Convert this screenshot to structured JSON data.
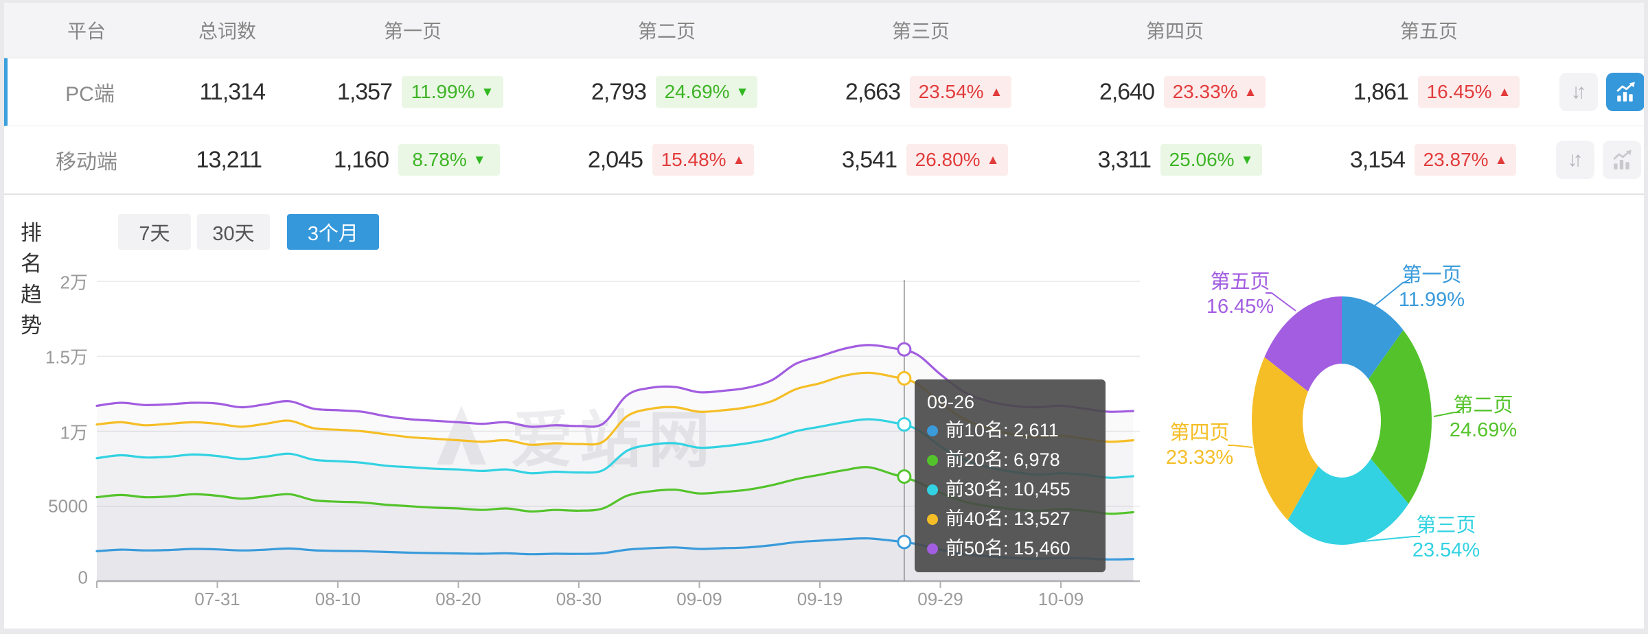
{
  "page": {
    "frame_color": "#e9e9eb",
    "card_color": "#ffffff"
  },
  "table": {
    "columns": [
      "平台",
      "总词数",
      "第一页",
      "第二页",
      "第三页",
      "第四页",
      "第五页"
    ],
    "rows": [
      {
        "platform": "PC端",
        "total": "11,314",
        "selected": true,
        "chart_active": true,
        "pages": [
          {
            "count": "1,357",
            "pct": "11.99%",
            "dir": "down",
            "tone": "green"
          },
          {
            "count": "2,793",
            "pct": "24.69%",
            "dir": "down",
            "tone": "green"
          },
          {
            "count": "2,663",
            "pct": "23.54%",
            "dir": "up",
            "tone": "red"
          },
          {
            "count": "2,640",
            "pct": "23.33%",
            "dir": "up",
            "tone": "red"
          },
          {
            "count": "1,861",
            "pct": "16.45%",
            "dir": "up",
            "tone": "red"
          }
        ]
      },
      {
        "platform": "移动端",
        "total": "13,211",
        "selected": false,
        "chart_active": false,
        "pages": [
          {
            "count": "1,160",
            "pct": "8.78%",
            "dir": "down",
            "tone": "green"
          },
          {
            "count": "2,045",
            "pct": "15.48%",
            "dir": "up",
            "tone": "red"
          },
          {
            "count": "3,541",
            "pct": "26.80%",
            "dir": "up",
            "tone": "red"
          },
          {
            "count": "3,311",
            "pct": "25.06%",
            "dir": "down",
            "tone": "green"
          },
          {
            "count": "3,154",
            "pct": "23.87%",
            "dir": "up",
            "tone": "red"
          }
        ]
      }
    ]
  },
  "trend": {
    "title": "排名趋势",
    "tabs": [
      {
        "label": "7天",
        "active": false
      },
      {
        "label": "30天",
        "active": false
      },
      {
        "label": "3个月",
        "active": true
      }
    ]
  },
  "watermark": "爱站网",
  "tooltip": {
    "title": "09-26",
    "rows": [
      {
        "label": "前10名",
        "value": "2,611",
        "color": "#3a9bdb"
      },
      {
        "label": "前20名",
        "value": "6,978",
        "color": "#54c32b"
      },
      {
        "label": "前30名",
        "value": "10,455",
        "color": "#32d2e2"
      },
      {
        "label": "前40名",
        "value": "13,527",
        "color": "#f5be26"
      },
      {
        "label": "前50名",
        "value": "15,460",
        "color": "#a25de0"
      }
    ]
  },
  "chart_data": [
    {
      "type": "line",
      "title": "排名趋势",
      "x_ticks": [
        "07-31",
        "08-10",
        "08-20",
        "08-30",
        "09-09",
        "09-19",
        "09-29",
        "10-09"
      ],
      "y_ticks": [
        "2万",
        "1.5万",
        "1万",
        "5000",
        "0"
      ],
      "ylim": [
        0,
        20000
      ],
      "grid": true,
      "legend_position": "none",
      "point_step_days": 2,
      "first_tick_day": 10,
      "tick_interval_days": 10,
      "crosshair_label": "09-26",
      "crosshair_day": 67,
      "crosshair_values": [
        2611,
        6978,
        10455,
        13527,
        15460
      ],
      "series": [
        {
          "name": "前10名",
          "color": "#3a9bdb",
          "values": [
            2000,
            2100,
            2050,
            2080,
            2150,
            2120,
            2050,
            2100,
            2180,
            2060,
            2020,
            2000,
            1950,
            1900,
            1870,
            1850,
            1830,
            1860,
            1800,
            1830,
            1820,
            1870,
            2100,
            2200,
            2250,
            2150,
            2200,
            2250,
            2400,
            2600,
            2700,
            2800,
            2850,
            2700,
            2480,
            2100,
            1800,
            1650,
            1550,
            1500,
            1550,
            1520,
            1450,
            1480
          ]
        },
        {
          "name": "前20名",
          "color": "#54c32b",
          "values": [
            5600,
            5750,
            5600,
            5650,
            5800,
            5700,
            5500,
            5650,
            5800,
            5400,
            5300,
            5250,
            5100,
            5000,
            4900,
            4850,
            4750,
            4850,
            4650,
            4750,
            4700,
            4850,
            5700,
            6000,
            6100,
            5850,
            5950,
            6100,
            6400,
            6800,
            7100,
            7400,
            7600,
            7150,
            6650,
            5900,
            5300,
            5000,
            4800,
            4700,
            4800,
            4700,
            4500,
            4600
          ]
        },
        {
          "name": "前30名",
          "color": "#32d2e2",
          "values": [
            8200,
            8400,
            8250,
            8300,
            8450,
            8350,
            8150,
            8300,
            8500,
            8100,
            8000,
            7900,
            7700,
            7600,
            7500,
            7450,
            7350,
            7450,
            7200,
            7300,
            7250,
            7400,
            8700,
            9100,
            9200,
            8900,
            9000,
            9200,
            9500,
            10000,
            10300,
            10600,
            10800,
            10600,
            10150,
            9000,
            8100,
            7600,
            7300,
            7100,
            7200,
            7100,
            6900,
            7000
          ]
        },
        {
          "name": "前40名",
          "color": "#f5be26",
          "values": [
            10450,
            10600,
            10400,
            10500,
            10600,
            10500,
            10300,
            10500,
            10700,
            10200,
            10100,
            10000,
            9800,
            9600,
            9500,
            9400,
            9300,
            9400,
            9100,
            9200,
            9150,
            9300,
            11000,
            11500,
            11600,
            11300,
            11400,
            11600,
            12000,
            12800,
            13200,
            13700,
            13900,
            13650,
            13200,
            11900,
            10800,
            10200,
            9800,
            9600,
            9700,
            9500,
            9300,
            9400
          ]
        },
        {
          "name": "前50名",
          "color": "#a25de0",
          "values": [
            11700,
            11900,
            11750,
            11800,
            11900,
            11850,
            11600,
            11800,
            12000,
            11500,
            11400,
            11300,
            11000,
            10800,
            10700,
            10600,
            10500,
            10600,
            10300,
            10400,
            10350,
            10500,
            12400,
            12900,
            12950,
            12600,
            12700,
            12900,
            13400,
            14500,
            15000,
            15500,
            15750,
            15550,
            15150,
            13800,
            12600,
            12000,
            11700,
            11600,
            11700,
            11500,
            11300,
            11350
          ]
        }
      ]
    },
    {
      "type": "pie",
      "labels": [
        "第一页",
        "第二页",
        "第三页",
        "第四页",
        "第五页"
      ],
      "values": [
        11.99,
        24.69,
        23.54,
        23.33,
        16.45
      ],
      "display": [
        "11.99%",
        "24.69%",
        "23.54%",
        "23.33%",
        "16.45%"
      ],
      "colors": [
        "#3a9bdb",
        "#54c32b",
        "#32d2e2",
        "#f5be26",
        "#a25de0"
      ],
      "inner_radius_ratio": 0.45,
      "legend_position": "callout-labels"
    }
  ]
}
